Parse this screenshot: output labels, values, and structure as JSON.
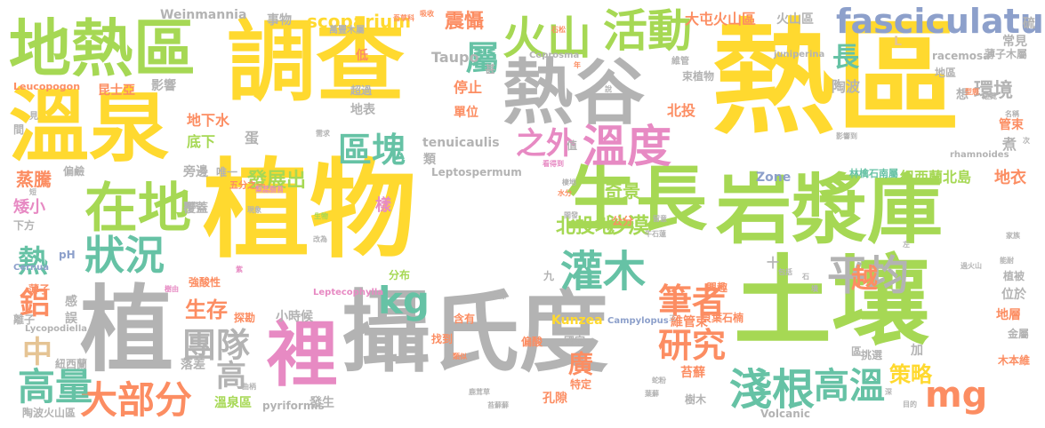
{
  "palette": {
    "yellow": "#ffd92f",
    "green": "#a6d854",
    "gray": "#b3b3b3",
    "teal": "#66c2a5",
    "orange": "#fc8d62",
    "blue": "#8da0cb",
    "pink": "#e78ac3",
    "sand": "#e5c494"
  },
  "words": [
    {
      "text": "植物",
      "color": "#ffd92f"
    },
    {
      "text": "熱區",
      "color": "#ffd92f"
    },
    {
      "text": "調查",
      "color": "#ffd92f"
    },
    {
      "text": "攝氏度",
      "color": "#b3b3b3"
    },
    {
      "text": "土壤",
      "color": "#a6d854"
    },
    {
      "text": "溫泉",
      "color": "#ffd92f"
    },
    {
      "text": "地熱區",
      "color": "#a6d854"
    },
    {
      "text": "生長",
      "color": "#a6d854"
    },
    {
      "text": "岩漿庫",
      "color": "#a6d854"
    },
    {
      "text": "熱谷",
      "color": "#b3b3b3"
    },
    {
      "text": "植",
      "color": "#b3b3b3"
    },
    {
      "text": "在地",
      "color": "#a6d854"
    },
    {
      "text": "裡",
      "color": "#e78ac3"
    },
    {
      "text": "火山",
      "color": "#a6d854"
    },
    {
      "text": "活動",
      "color": "#a6d854"
    },
    {
      "text": "fasciculatus",
      "color": "#8da0cb"
    },
    {
      "text": "溫度",
      "color": "#e78ac3"
    },
    {
      "text": "狀況",
      "color": "#66c2a5"
    },
    {
      "text": "灌木",
      "color": "#66c2a5"
    },
    {
      "text": "平均",
      "color": "#b3b3b3"
    },
    {
      "text": "區塊",
      "color": "#66c2a5"
    },
    {
      "text": "屬",
      "color": "#66c2a5"
    },
    {
      "text": "長",
      "color": "#66c2a5"
    },
    {
      "text": "大部分",
      "color": "#fc8d62"
    },
    {
      "text": "淺根",
      "color": "#66c2a5"
    },
    {
      "text": "高溫",
      "color": "#66c2a5"
    },
    {
      "text": "高量",
      "color": "#66c2a5"
    },
    {
      "text": "團隊",
      "color": "#b3b3b3"
    },
    {
      "text": "研究",
      "color": "#fc8d62"
    },
    {
      "text": "筆者",
      "color": "#fc8d62"
    },
    {
      "text": "mg",
      "color": "#fc8d62"
    },
    {
      "text": "kg",
      "color": "#66c2a5"
    },
    {
      "text": "之外",
      "color": "#e78ac3"
    },
    {
      "text": "中",
      "color": "#e5c494"
    },
    {
      "text": "高",
      "color": "#b3b3b3"
    },
    {
      "text": "熱",
      "color": "#66c2a5"
    },
    {
      "text": "鋁",
      "color": "#fc8d62"
    },
    {
      "text": "廣",
      "color": "#fc8d62"
    },
    {
      "text": "越",
      "color": "#fc8d62"
    },
    {
      "text": "scoparium",
      "color": "#ffd92f"
    },
    {
      "text": "發展出",
      "color": "#a6d854"
    },
    {
      "text": "沙漠",
      "color": "#a6d854"
    },
    {
      "text": "北投地",
      "color": "#a6d854"
    },
    {
      "text": "策略",
      "color": "#ffd92f"
    },
    {
      "text": "生存",
      "color": "#fc8d62"
    },
    {
      "text": "環境",
      "color": "#b3b3b3"
    },
    {
      "text": "奇景",
      "color": "#a6d854"
    },
    {
      "text": "震懾",
      "color": "#fc8d62"
    },
    {
      "text": "大屯火山區",
      "color": "#fc8d62"
    },
    {
      "text": "火山區",
      "color": "#b3b3b3"
    },
    {
      "text": "事物",
      "color": "#b3b3b3"
    },
    {
      "text": "Weinmannia",
      "color": "#b3b3b3"
    },
    {
      "text": "蒸騰",
      "color": "#fc8d62"
    },
    {
      "text": "地衣",
      "color": "#fc8d62"
    },
    {
      "text": "紐西蘭北島",
      "color": "#a6d854"
    },
    {
      "text": "林檎石南屬",
      "color": "#66c2a5"
    },
    {
      "text": "Leucopogon",
      "color": "#fc8d62"
    },
    {
      "text": "昆士亞",
      "color": "#fc8d62"
    },
    {
      "text": "影響",
      "color": "#b3b3b3"
    },
    {
      "text": "地下水",
      "color": "#fc8d62"
    },
    {
      "text": "底下",
      "color": "#a6d854"
    },
    {
      "text": "蛋",
      "color": "#b3b3b3"
    },
    {
      "text": "北投",
      "color": "#fc8d62"
    },
    {
      "text": "停止",
      "color": "#fc8d62"
    },
    {
      "text": "單位",
      "color": "#fc8d62"
    },
    {
      "text": "地表",
      "color": "#b3b3b3"
    },
    {
      "text": "超過",
      "color": "#b3b3b3"
    },
    {
      "text": "Taupo",
      "color": "#b3b3b3"
    },
    {
      "text": "tenuicaulis",
      "color": "#b3b3b3"
    },
    {
      "text": "類",
      "color": "#b3b3b3"
    },
    {
      "text": "Leptospermum",
      "color": "#b3b3b3"
    },
    {
      "text": "Zone",
      "color": "#8da0cb"
    },
    {
      "text": "陶波",
      "color": "#b3b3b3"
    },
    {
      "text": "常見",
      "color": "#b3b3b3"
    },
    {
      "text": "薄子木屬",
      "color": "#b3b3b3"
    },
    {
      "text": "racemosa",
      "color": "#b3b3b3"
    },
    {
      "text": "地區",
      "color": "#b3b3b3"
    },
    {
      "text": "煮",
      "color": "#b3b3b3"
    },
    {
      "text": "想",
      "color": "#b3b3b3"
    },
    {
      "text": "管束",
      "color": "#fc8d62"
    },
    {
      "text": "硫",
      "color": "#b3b3b3"
    },
    {
      "text": "偏鹼",
      "color": "#b3b3b3"
    },
    {
      "text": "矮小",
      "color": "#e78ac3"
    },
    {
      "text": "下方",
      "color": "#b3b3b3"
    },
    {
      "text": "旁邊",
      "color": "#b3b3b3"
    },
    {
      "text": "唯一",
      "color": "#b3b3b3"
    },
    {
      "text": "樣",
      "color": "#e78ac3"
    },
    {
      "text": "覆蓋",
      "color": "#b3b3b3"
    },
    {
      "text": "公分",
      "color": "#fc8d62"
    },
    {
      "text": "強酸性",
      "color": "#fc8d62"
    },
    {
      "text": "分布",
      "color": "#a6d854"
    },
    {
      "text": "小時候",
      "color": "#b3b3b3"
    },
    {
      "text": "探勘",
      "color": "#fc8d62"
    },
    {
      "text": "感",
      "color": "#b3b3b3"
    },
    {
      "text": "誤",
      "color": "#b3b3b3"
    },
    {
      "text": "薄子",
      "color": "#fc8d62"
    },
    {
      "text": "離子",
      "color": "#b3b3b3"
    },
    {
      "text": "紐西蘭",
      "color": "#b3b3b3"
    },
    {
      "text": "陶波火山區",
      "color": "#b3b3b3"
    },
    {
      "text": "溫泉區",
      "color": "#a6d854"
    },
    {
      "text": "落差",
      "color": "#b3b3b3"
    },
    {
      "text": "pyriformis",
      "color": "#b3b3b3"
    },
    {
      "text": "發生",
      "color": "#b3b3b3"
    },
    {
      "text": "含有",
      "color": "#fc8d62"
    },
    {
      "text": "找到",
      "color": "#fc8d62"
    },
    {
      "text": "孔隙",
      "color": "#fc8d62"
    },
    {
      "text": "特定",
      "color": "#fc8d62"
    },
    {
      "text": "偏酸",
      "color": "#fc8d62"
    },
    {
      "text": "國家",
      "color": "#b3b3b3"
    },
    {
      "text": "Kunzea",
      "color": "#ffd92f"
    },
    {
      "text": "維管束",
      "color": "#fc8d62"
    },
    {
      "text": "貝葉石楠",
      "color": "#fc8d62"
    },
    {
      "text": "苔蘚",
      "color": "#fc8d62"
    },
    {
      "text": "挑選",
      "color": "#b3b3b3"
    },
    {
      "text": "樹木",
      "color": "#b3b3b3"
    },
    {
      "text": "Volcanic",
      "color": "#b3b3b3"
    },
    {
      "text": "加",
      "color": "#b3b3b3"
    },
    {
      "text": "地層",
      "color": "#fc8d62"
    },
    {
      "text": "金屬",
      "color": "#b3b3b3"
    },
    {
      "text": "木本維",
      "color": "#fc8d62"
    },
    {
      "text": "位於",
      "color": "#b3b3b3"
    },
    {
      "text": "植被",
      "color": "#b3b3b3"
    },
    {
      "text": "興趣",
      "color": "#fc8d62"
    },
    {
      "text": "萬豐木屬",
      "color": "#b3b3b3"
    },
    {
      "text": "束植物",
      "color": "#b3b3b3"
    },
    {
      "text": "維管",
      "color": "#b3b3b3"
    },
    {
      "text": "pH",
      "color": "#8da0cb"
    },
    {
      "text": "Campylopus",
      "color": "#8da0cb"
    },
    {
      "text": "Leptecophylla",
      "color": "#e78ac3"
    },
    {
      "text": "Lycopodiella",
      "color": "#b3b3b3"
    },
    {
      "text": "Cernua",
      "color": "#8da0cb"
    },
    {
      "text": "Coprosma",
      "color": "#b3b3b3"
    },
    {
      "text": "juniperina",
      "color": "#b3b3b3"
    },
    {
      "text": "rhamnoides",
      "color": "#b3b3b3"
    },
    {
      "text": "L",
      "color": "#e5c494"
    },
    {
      "text": "十",
      "color": "#b3b3b3"
    },
    {
      "text": "九",
      "color": "#b3b3b3"
    },
    {
      "text": "甚",
      "color": "#b3b3b3"
    },
    {
      "text": "低",
      "color": "#fc8d62"
    },
    {
      "text": "值",
      "color": "#b3b3b3"
    },
    {
      "text": "間",
      "color": "#b3b3b3"
    },
    {
      "text": "見",
      "color": "#b3b3b3"
    },
    {
      "text": "區",
      "color": "#b3b3b3"
    },
    {
      "text": "三",
      "color": "#b3b3b3"
    },
    {
      "text": "五分之一",
      "color": "#fc8d62"
    },
    {
      "text": "吾草科",
      "color": "#fc8d62"
    },
    {
      "text": "吸收",
      "color": "#fc8d62"
    },
    {
      "text": "石松",
      "color": "#fc8d62"
    },
    {
      "text": "年",
      "color": "#fc8d62"
    },
    {
      "text": "說",
      "color": "#b3b3b3"
    },
    {
      "text": "型態",
      "color": "#fc8d62"
    },
    {
      "text": "遊覽",
      "color": "#b3b3b3"
    },
    {
      "text": "名稱",
      "color": "#b3b3b3"
    },
    {
      "text": "次",
      "color": "#b3b3b3"
    },
    {
      "text": "影響到",
      "color": "#b3b3b3"
    },
    {
      "text": "需求",
      "color": "#b3b3b3"
    },
    {
      "text": "看得到",
      "color": "#e78ac3"
    },
    {
      "text": "棲地",
      "color": "#b3b3b3"
    },
    {
      "text": "水分",
      "color": "#fc8d62"
    },
    {
      "text": "梨蕊脂苔",
      "color": "#e78ac3"
    },
    {
      "text": "現象",
      "color": "#b3b3b3"
    },
    {
      "text": "時期",
      "color": "#b3b3b3"
    },
    {
      "text": "生物",
      "color": "#a6d854"
    },
    {
      "text": "改為",
      "color": "#b3b3b3"
    },
    {
      "text": "石",
      "color": "#b3b3b3"
    },
    {
      "text": "包括",
      "color": "#b3b3b3"
    },
    {
      "text": "開發",
      "color": "#b3b3b3"
    },
    {
      "text": "留意",
      "color": "#b3b3b3"
    },
    {
      "text": "牛石蓮",
      "color": "#b3b3b3"
    },
    {
      "text": "家族",
      "color": "#b3b3b3"
    },
    {
      "text": "過火山",
      "color": "#b3b3b3"
    },
    {
      "text": "能耐",
      "color": "#b3b3b3"
    },
    {
      "text": "左",
      "color": "#b3b3b3"
    },
    {
      "text": "墳",
      "color": "#b3b3b3"
    },
    {
      "text": "樹由",
      "color": "#e78ac3"
    },
    {
      "text": "紫",
      "color": "#e78ac3"
    },
    {
      "text": "數源",
      "color": "#b3b3b3"
    },
    {
      "text": "曲柄",
      "color": "#b3b3b3"
    },
    {
      "text": "類似",
      "color": "#fc8d62"
    },
    {
      "text": "鹿茸草",
      "color": "#b3b3b3"
    },
    {
      "text": "苔蘚蘚",
      "color": "#b3b3b3"
    },
    {
      "text": "蛇粉",
      "color": "#b3b3b3"
    },
    {
      "text": "葉蘚",
      "color": "#b3b3b3"
    },
    {
      "text": "深",
      "color": "#b3b3b3"
    },
    {
      "text": "目的",
      "color": "#b3b3b3"
    },
    {
      "text": "短",
      "color": "#b3b3b3"
    }
  ]
}
